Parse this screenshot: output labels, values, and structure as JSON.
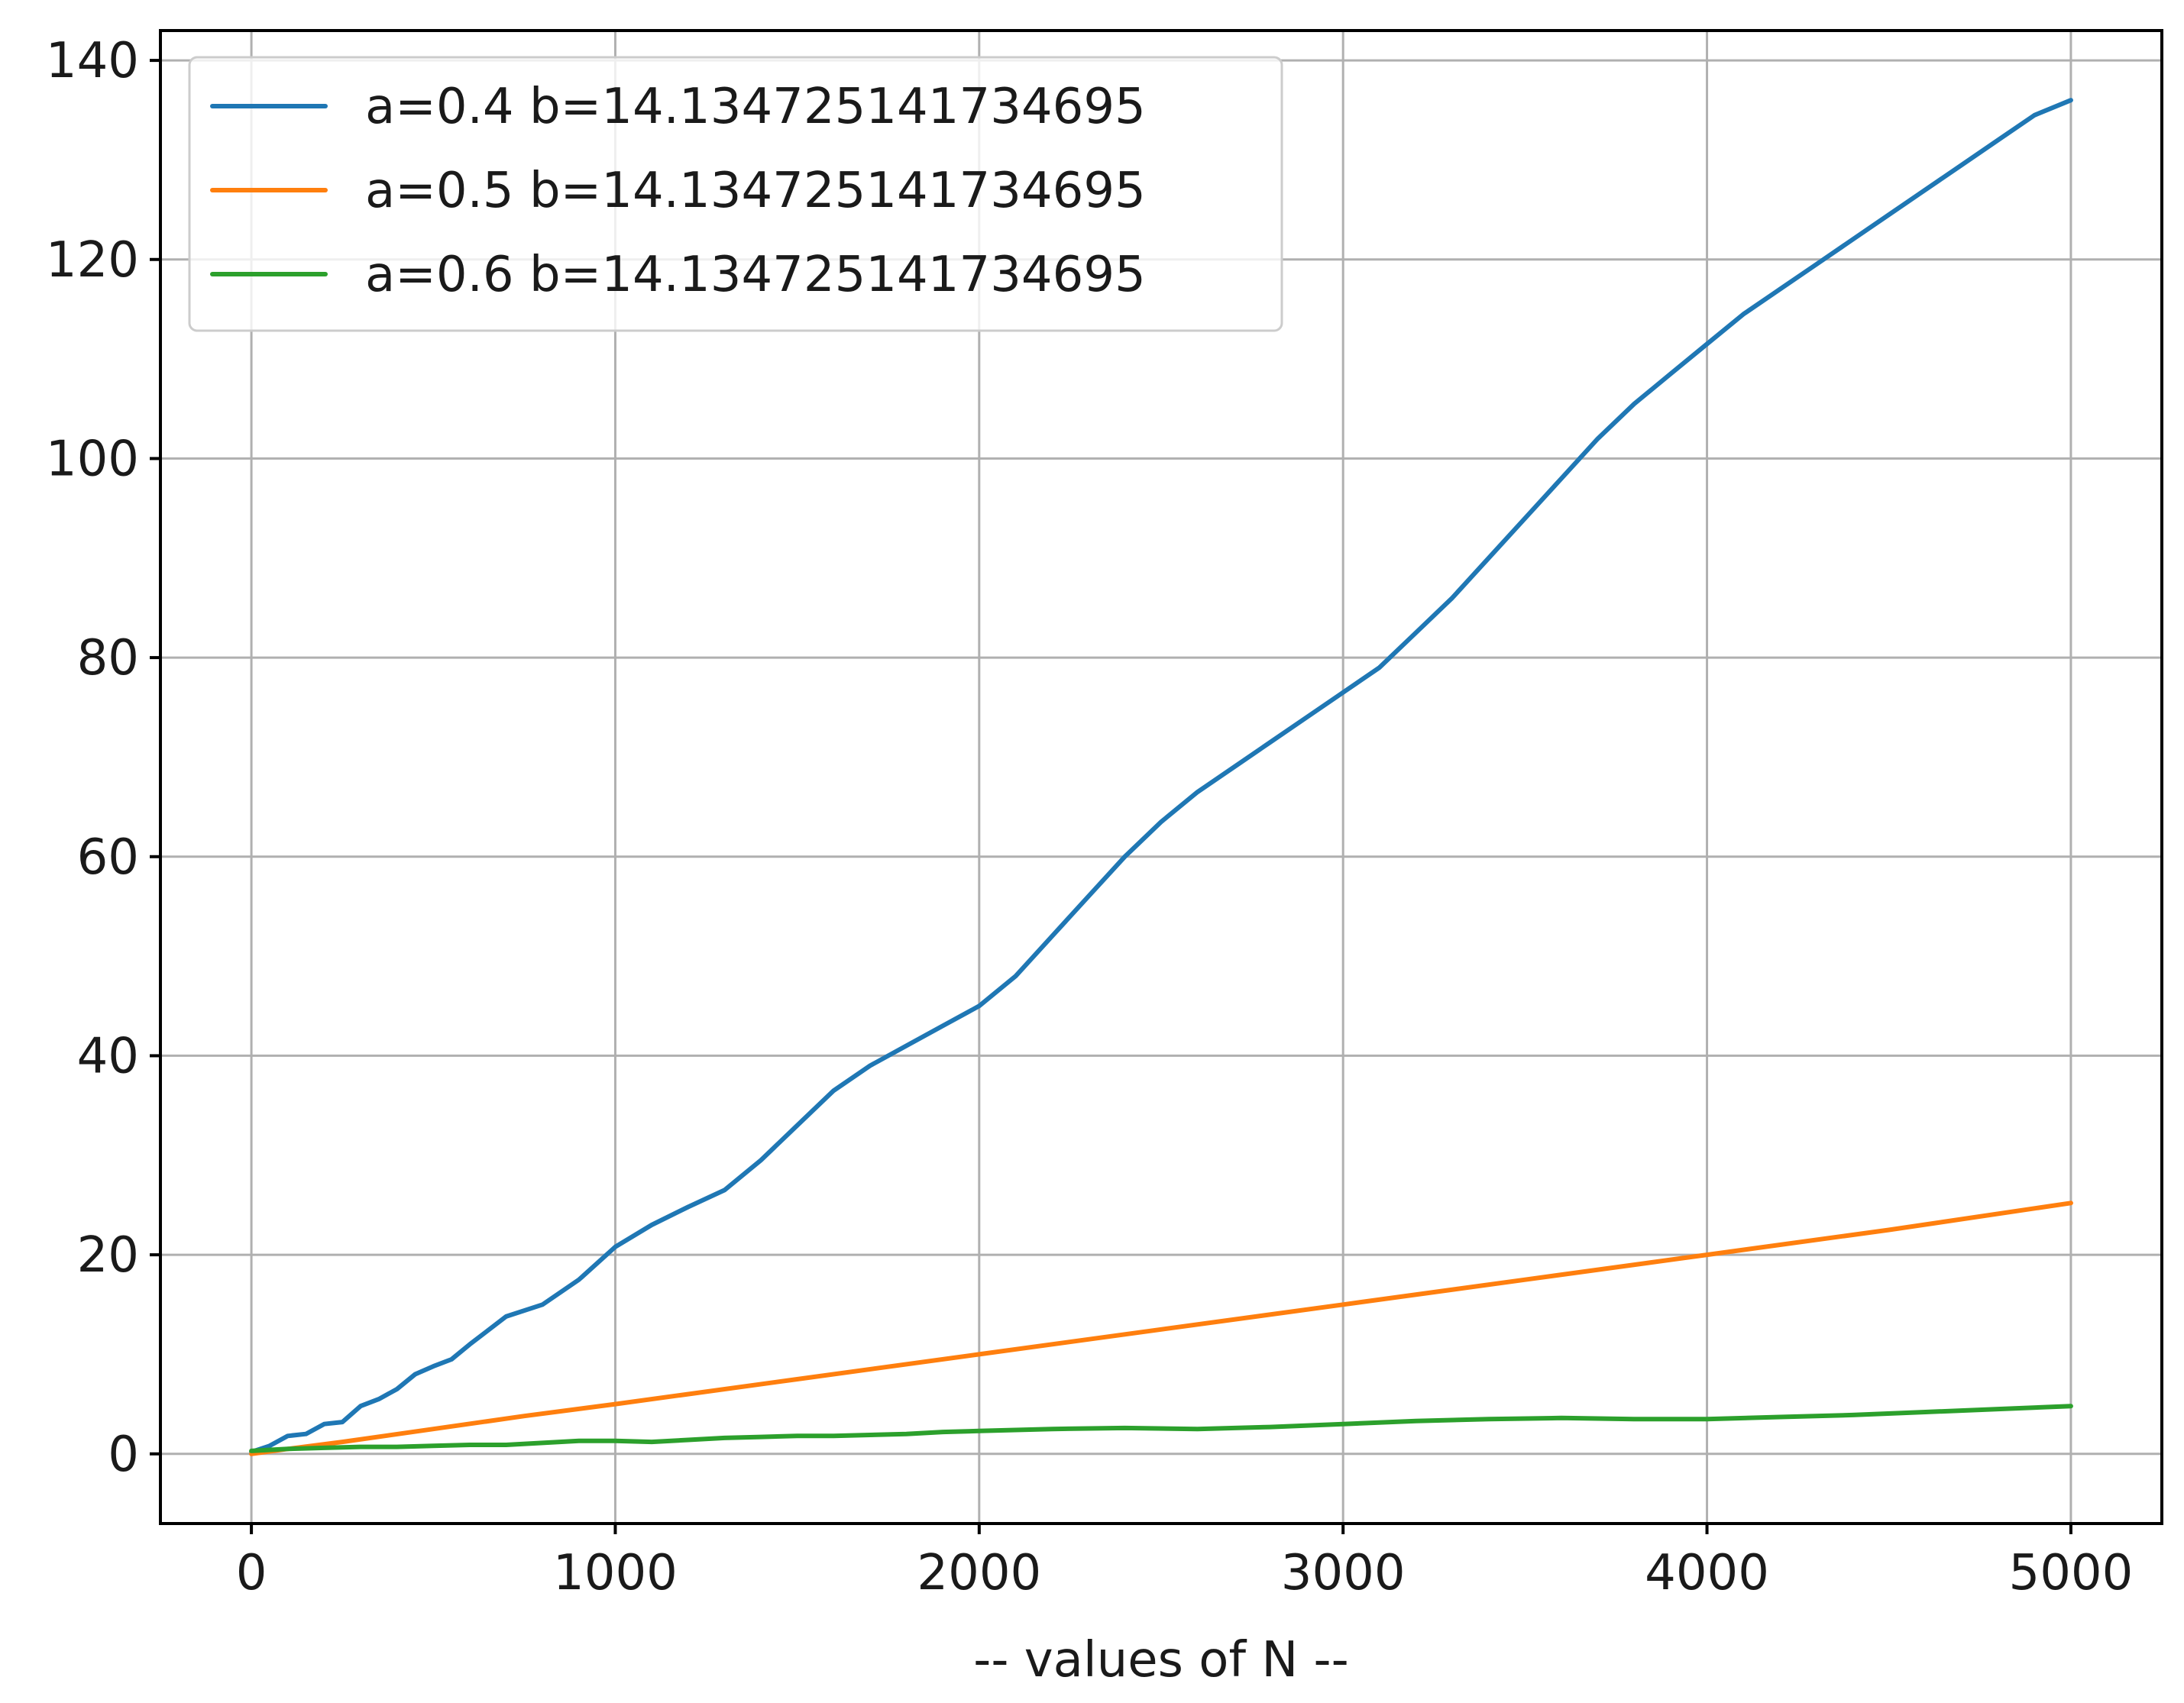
{
  "chart_data": {
    "type": "line",
    "title": "",
    "xlabel": "--   values of N   --",
    "ylabel": "",
    "xlim": [
      -250,
      5250
    ],
    "ylim": [
      -7,
      143
    ],
    "xticks": [
      0,
      1000,
      2000,
      3000,
      4000,
      5000
    ],
    "xtick_labels": [
      "0",
      "1000",
      "2000",
      "3000",
      "4000",
      "5000"
    ],
    "yticks": [
      0,
      20,
      40,
      60,
      80,
      100,
      120,
      140
    ],
    "ytick_labels": [
      "0",
      "20",
      "40",
      "60",
      "80",
      "100",
      "120",
      "140"
    ],
    "grid": true,
    "legend_position": "top-left",
    "series": [
      {
        "name": "a=0.4 b=14.134725141734695",
        "color": "#1f77b4",
        "x": [
          0,
          50,
          100,
          150,
          200,
          250,
          300,
          350,
          400,
          450,
          500,
          550,
          600,
          700,
          800,
          900,
          1000,
          1100,
          1200,
          1300,
          1400,
          1500,
          1600,
          1700,
          1800,
          1900,
          2000,
          2100,
          2200,
          2300,
          2400,
          2500,
          2600,
          2700,
          2800,
          2900,
          3000,
          3100,
          3200,
          3300,
          3400,
          3500,
          3600,
          3700,
          3800,
          3900,
          4000,
          4100,
          4200,
          4300,
          4400,
          4500,
          4600,
          4700,
          4800,
          4900,
          5000
        ],
        "y": [
          0.2,
          0.8,
          1.8,
          2.0,
          3.0,
          3.2,
          4.8,
          5.5,
          6.5,
          8.0,
          8.8,
          9.5,
          11.0,
          13.8,
          15.0,
          17.5,
          20.8,
          23.0,
          24.8,
          26.5,
          29.5,
          33.0,
          36.5,
          39.0,
          41.0,
          43.0,
          45.0,
          48.0,
          52.0,
          56.0,
          60.0,
          63.5,
          66.5,
          69.0,
          71.5,
          74.0,
          76.5,
          79.0,
          82.5,
          86.0,
          90.0,
          94.0,
          98.0,
          102.0,
          105.5,
          108.5,
          111.5,
          114.5,
          117.0,
          119.5,
          122.0,
          124.5,
          127.0,
          129.5,
          132.0,
          134.5,
          136.0
        ]
      },
      {
        "name": "a=0.5 b=14.134725141734695",
        "color": "#ff7f0e",
        "x": [
          0,
          100,
          250,
          500,
          750,
          1000,
          1500,
          2000,
          2500,
          3000,
          3500,
          4000,
          4500,
          5000
        ],
        "y": [
          0.0,
          0.5,
          1.2,
          2.5,
          3.8,
          5.0,
          7.5,
          10.0,
          12.5,
          15.0,
          17.5,
          20.0,
          22.5,
          25.2
        ]
      },
      {
        "name": "a=0.6 b=14.134725141734695",
        "color": "#2ca02c",
        "x": [
          0,
          100,
          200,
          300,
          400,
          500,
          600,
          700,
          800,
          900,
          1000,
          1100,
          1200,
          1300,
          1400,
          1500,
          1600,
          1700,
          1800,
          1900,
          2000,
          2200,
          2400,
          2600,
          2800,
          3000,
          3200,
          3400,
          3600,
          3800,
          4000,
          4200,
          4400,
          4600,
          4800,
          5000
        ],
        "y": [
          0.3,
          0.5,
          0.6,
          0.7,
          0.7,
          0.8,
          0.9,
          0.9,
          1.1,
          1.3,
          1.3,
          1.2,
          1.4,
          1.6,
          1.7,
          1.8,
          1.8,
          1.9,
          2.0,
          2.2,
          2.3,
          2.5,
          2.6,
          2.5,
          2.7,
          3.0,
          3.3,
          3.5,
          3.6,
          3.5,
          3.5,
          3.7,
          3.9,
          4.2,
          4.5,
          4.8
        ]
      }
    ]
  }
}
